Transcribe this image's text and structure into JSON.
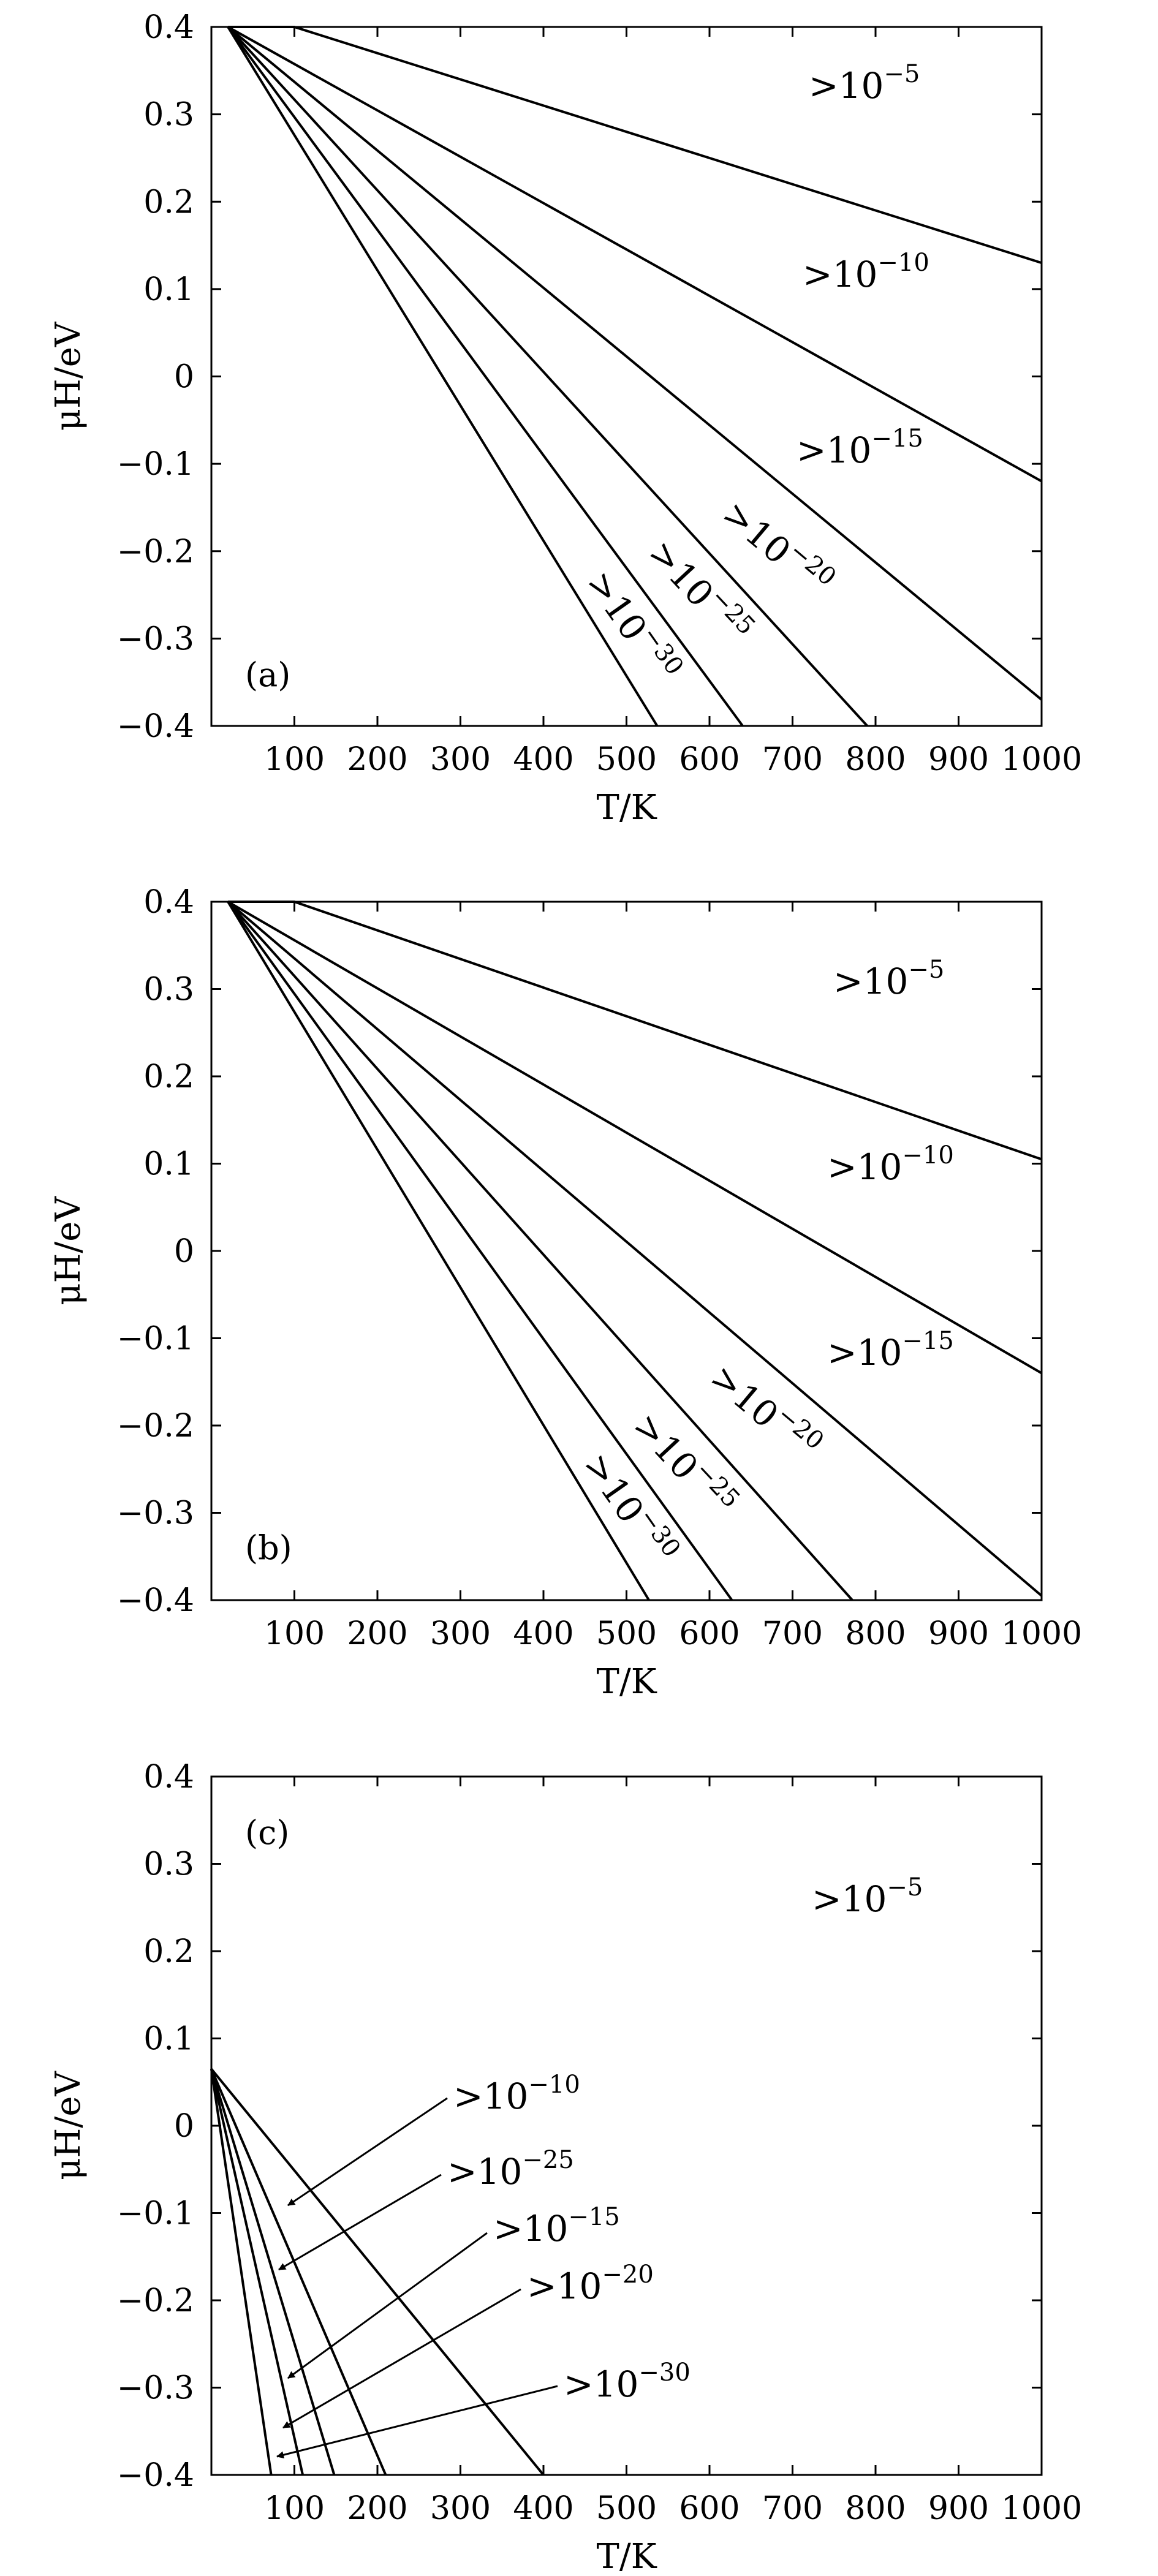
{
  "chart_data": [
    {
      "type": "line",
      "panel_label": "(a)",
      "xlabel": "T/K",
      "ylabel": "μH/eV",
      "xlim": [
        0,
        1000
      ],
      "ylim": [
        -0.4,
        0.4
      ],
      "xticks": [
        100,
        200,
        300,
        400,
        500,
        600,
        700,
        800,
        900,
        1000
      ],
      "yticks": [
        0.4,
        0.3,
        0.2,
        0.1,
        0,
        -0.1,
        -0.2,
        -0.3,
        -0.4
      ],
      "series": [
        {
          "name": ">10^-5",
          "x": [
            20,
            100,
            1000
          ],
          "y": [
            0.4,
            0.4,
            0.13
          ]
        },
        {
          "name": ">10^-10",
          "x": [
            20,
            1000
          ],
          "y": [
            0.4,
            -0.12
          ]
        },
        {
          "name": ">10^-15",
          "x": [
            20,
            1000
          ],
          "y": [
            0.4,
            -0.37
          ]
        },
        {
          "name": ">10^-20",
          "x": [
            20,
            790
          ],
          "y": [
            0.4,
            -0.4
          ]
        },
        {
          "name": ">10^-25",
          "x": [
            20,
            640
          ],
          "y": [
            0.4,
            -0.4
          ]
        },
        {
          "name": ">10^-30",
          "x": [
            20,
            537
          ],
          "y": [
            0.4,
            -0.4
          ]
        }
      ],
      "annotations": [
        {
          "base": ">10",
          "exp": "−5"
        },
        {
          "base": ">10",
          "exp": "−10"
        },
        {
          "base": ">10",
          "exp": "−15"
        },
        {
          "base": ">10",
          "exp": "−20"
        },
        {
          "base": ">10",
          "exp": "−25"
        },
        {
          "base": ">10",
          "exp": "−30"
        }
      ],
      "grid": false
    },
    {
      "type": "line",
      "panel_label": "(b)",
      "xlabel": "T/K",
      "ylabel": "μH/eV",
      "xlim": [
        0,
        1000
      ],
      "ylim": [
        -0.4,
        0.4
      ],
      "xticks": [
        100,
        200,
        300,
        400,
        500,
        600,
        700,
        800,
        900,
        1000
      ],
      "yticks": [
        0.4,
        0.3,
        0.2,
        0.1,
        0,
        -0.1,
        -0.2,
        -0.3,
        -0.4
      ],
      "series": [
        {
          "name": ">10^-5",
          "x": [
            20,
            100,
            1000
          ],
          "y": [
            0.4,
            0.4,
            0.105
          ]
        },
        {
          "name": ">10^-10",
          "x": [
            20,
            1000
          ],
          "y": [
            0.4,
            -0.14
          ]
        },
        {
          "name": ">10^-15",
          "x": [
            20,
            1000
          ],
          "y": [
            0.4,
            -0.395
          ]
        },
        {
          "name": ">10^-20",
          "x": [
            20,
            772
          ],
          "y": [
            0.4,
            -0.4
          ]
        },
        {
          "name": ">10^-25",
          "x": [
            20,
            627
          ],
          "y": [
            0.4,
            -0.4
          ]
        },
        {
          "name": ">10^-30",
          "x": [
            20,
            527
          ],
          "y": [
            0.4,
            -0.4
          ]
        }
      ],
      "annotations": [
        {
          "base": ">10",
          "exp": "−5"
        },
        {
          "base": ">10",
          "exp": "−10"
        },
        {
          "base": ">10",
          "exp": "−15"
        },
        {
          "base": ">10",
          "exp": "−20"
        },
        {
          "base": ">10",
          "exp": "−25"
        },
        {
          "base": ">10",
          "exp": "−30"
        }
      ],
      "grid": false
    },
    {
      "type": "line",
      "panel_label": "(c)",
      "xlabel": "T/K",
      "ylabel": "μH/eV",
      "xlim": [
        0,
        1000
      ],
      "ylim": [
        -0.4,
        0.4
      ],
      "xticks": [
        100,
        200,
        300,
        400,
        500,
        600,
        700,
        800,
        900,
        1000
      ],
      "yticks": [
        0.4,
        0.3,
        0.2,
        0.1,
        0,
        -0.1,
        -0.2,
        -0.3,
        -0.4
      ],
      "series": [
        {
          "name": ">10^-10",
          "x": [
            0,
            400
          ],
          "y": [
            0.065,
            -0.4
          ]
        },
        {
          "name": ">10^-25",
          "x": [
            0,
            210
          ],
          "y": [
            0.065,
            -0.4
          ]
        },
        {
          "name": ">10^-15",
          "x": [
            0,
            148
          ],
          "y": [
            0.065,
            -0.4
          ]
        },
        {
          "name": ">10^-20",
          "x": [
            0,
            110
          ],
          "y": [
            0.065,
            -0.4
          ]
        },
        {
          "name": ">10^-30",
          "x": [
            0,
            72
          ],
          "y": [
            0.065,
            -0.4
          ]
        }
      ],
      "annotations": [
        {
          "base": ">10",
          "exp": "−5"
        },
        {
          "base": ">10",
          "exp": "−10"
        },
        {
          "base": ">10",
          "exp": "−25"
        },
        {
          "base": ">10",
          "exp": "−15"
        },
        {
          "base": ">10",
          "exp": "−20"
        },
        {
          "base": ">10",
          "exp": "−30"
        }
      ],
      "grid": false
    }
  ]
}
